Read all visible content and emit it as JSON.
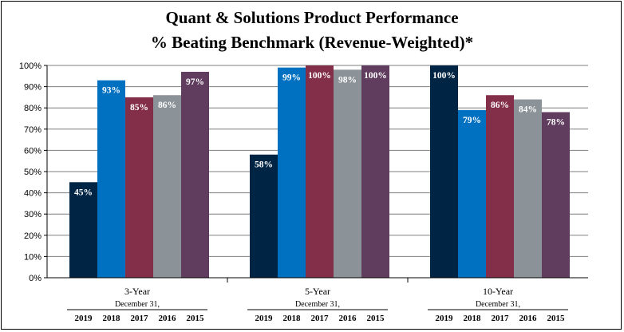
{
  "chart_data": {
    "type": "bar",
    "title": "Quant & Solutions Product Performance",
    "subtitle": "% Beating Benchmark (Revenue-Weighted)*",
    "categories": [
      "3-Year",
      "5-Year",
      "10-Year"
    ],
    "group_caption": "December 31,",
    "series": [
      {
        "name": "2019",
        "color": "#002544",
        "values": [
          45,
          58,
          100
        ]
      },
      {
        "name": "2018",
        "color": "#0070C0",
        "values": [
          93,
          99,
          79
        ]
      },
      {
        "name": "2017",
        "color": "#832F4A",
        "values": [
          85,
          100,
          86
        ]
      },
      {
        "name": "2016",
        "color": "#8C9398",
        "values": [
          86,
          98,
          84
        ]
      },
      {
        "name": "2015",
        "color": "#603C5E",
        "values": [
          97,
          100,
          78
        ]
      }
    ],
    "data_labels": [
      [
        "45%",
        "58%",
        "100%"
      ],
      [
        "93%",
        "99%",
        "79%"
      ],
      [
        "85%",
        "100%",
        "86%"
      ],
      [
        "86%",
        "98%",
        "84%"
      ],
      [
        "97%",
        "100%",
        "78%"
      ]
    ],
    "yticks": [
      "0%",
      "10%",
      "20%",
      "30%",
      "40%",
      "50%",
      "60%",
      "70%",
      "80%",
      "90%",
      "100%"
    ],
    "ylim": [
      0,
      100
    ],
    "grid": true,
    "xlabel": "",
    "ylabel": ""
  }
}
